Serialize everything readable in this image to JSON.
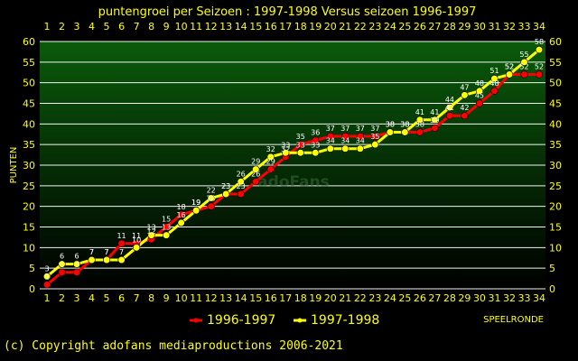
{
  "chart_data": {
    "type": "line",
    "title": "puntengroei per Seizoen : 1997-1998 Versus seizoen 1996-1997",
    "xlabel": "SPEELRONDE",
    "ylabel": "PUNTEN",
    "x": [
      1,
      2,
      3,
      4,
      5,
      6,
      7,
      8,
      9,
      10,
      11,
      12,
      13,
      14,
      15,
      16,
      17,
      18,
      19,
      20,
      21,
      22,
      23,
      24,
      25,
      26,
      27,
      28,
      29,
      30,
      31,
      32,
      33,
      34
    ],
    "xlim": [
      1,
      34
    ],
    "ylim": [
      0,
      60
    ],
    "yticks": [
      0,
      5,
      10,
      15,
      20,
      25,
      30,
      35,
      40,
      45,
      50,
      55,
      60
    ],
    "grid": true,
    "legend_position": "bottom-left",
    "series": [
      {
        "name": "1996-1997",
        "color": "#ff0000",
        "values": [
          1,
          4,
          4,
          7,
          7,
          11,
          11,
          12,
          15,
          18,
          19,
          20,
          23,
          23,
          26,
          29,
          32,
          35,
          36,
          37,
          37,
          37,
          37,
          38,
          38,
          38,
          39,
          42,
          42,
          45,
          48,
          52,
          52,
          52
        ]
      },
      {
        "name": "1997-1998",
        "color": "#ffff00",
        "values": [
          3,
          6,
          6,
          7,
          7,
          7,
          10,
          13,
          13,
          16,
          19,
          22,
          23,
          26,
          29,
          32,
          33,
          33,
          33,
          34,
          34,
          34,
          35,
          38,
          38,
          41,
          41,
          44,
          47,
          48,
          51,
          52,
          55,
          58
        ]
      }
    ],
    "watermark": "adoFans"
  },
  "colors": {
    "background": "#000000",
    "plot_top": "#0a5a0a",
    "plot_bottom": "#000000",
    "axis_text": "#ffff00"
  },
  "copyright": "(c) Copyright adofans mediaproductions 2006-2021"
}
